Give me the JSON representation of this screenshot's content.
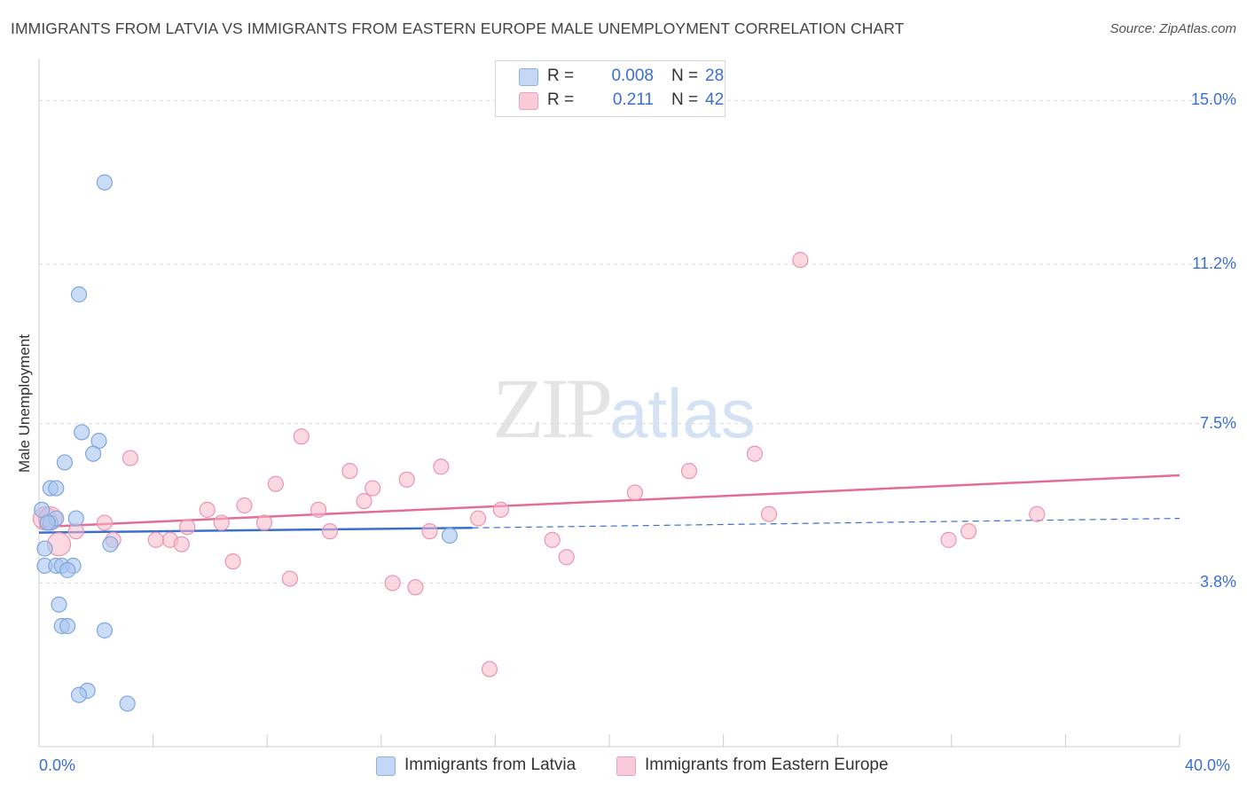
{
  "header": {
    "title": "IMMIGRANTS FROM LATVIA VS IMMIGRANTS FROM EASTERN EUROPE MALE UNEMPLOYMENT CORRELATION CHART",
    "source": "Source: ZipAtlas.com"
  },
  "watermark": {
    "zip": "ZIP",
    "atlas": "atlas"
  },
  "colors": {
    "latvia_fill": "#a9c6f0",
    "latvia_stroke": "#7fa6dd",
    "latvia_line": "#3a6fd0",
    "eastern_fill": "#f7b8cb",
    "eastern_stroke": "#e996b0",
    "eastern_line": "#e46d98",
    "grid": "#d9d9d9",
    "tick_label": "#3b6fd4"
  },
  "legend": {
    "rows": [
      {
        "r_label": "R =",
        "r_value": "0.008",
        "n_label": "N =",
        "n_value": "28"
      },
      {
        "r_label": "R =",
        "r_value": "0.211",
        "n_label": "N =",
        "n_value": "42"
      }
    ]
  },
  "bottom_legend": [
    {
      "label": "Immigrants from Latvia"
    },
    {
      "label": "Immigrants from Eastern Europe"
    }
  ],
  "chart_data": {
    "type": "scatter",
    "title": "IMMIGRANTS FROM LATVIA VS IMMIGRANTS FROM EASTERN EUROPE MALE UNEMPLOYMENT CORRELATION CHART",
    "xlabel": "",
    "ylabel": "Male Unemployment",
    "xlim": [
      0,
      40
    ],
    "ylim": [
      0,
      16.1
    ],
    "x_tick_labels": [
      "0.0%",
      "40.0%"
    ],
    "y_ticks": [
      3.8,
      7.5,
      11.2,
      15.0
    ],
    "y_tick_labels": [
      "3.8%",
      "7.5%",
      "11.2%",
      "15.0%"
    ],
    "grid": true,
    "legend_position": "top-center",
    "series": [
      {
        "name": "Immigrants from Latvia",
        "r": 0.008,
        "n": 28,
        "trend": {
          "x": [
            0,
            15.2
          ],
          "y": [
            4.97,
            5.08
          ],
          "dashed_extension": {
            "x": [
              15.2,
              40
            ],
            "y": [
              5.08,
              5.3
            ]
          }
        },
        "points": [
          {
            "x": 2.3,
            "y": 13.1
          },
          {
            "x": 1.4,
            "y": 10.5
          },
          {
            "x": 1.5,
            "y": 7.3
          },
          {
            "x": 2.1,
            "y": 7.1
          },
          {
            "x": 1.9,
            "y": 6.8
          },
          {
            "x": 0.9,
            "y": 6.6
          },
          {
            "x": 0.4,
            "y": 6.0
          },
          {
            "x": 0.6,
            "y": 6.0
          },
          {
            "x": 0.1,
            "y": 5.5
          },
          {
            "x": 0.4,
            "y": 5.2
          },
          {
            "x": 0.6,
            "y": 5.3
          },
          {
            "x": 1.3,
            "y": 5.3
          },
          {
            "x": 0.2,
            "y": 4.6
          },
          {
            "x": 2.5,
            "y": 4.7
          },
          {
            "x": 0.2,
            "y": 4.2
          },
          {
            "x": 0.6,
            "y": 4.2
          },
          {
            "x": 0.8,
            "y": 4.2
          },
          {
            "x": 1.2,
            "y": 4.2
          },
          {
            "x": 1.0,
            "y": 4.1
          },
          {
            "x": 0.7,
            "y": 3.3
          },
          {
            "x": 0.8,
            "y": 2.8
          },
          {
            "x": 1.0,
            "y": 2.8
          },
          {
            "x": 2.3,
            "y": 2.7
          },
          {
            "x": 1.7,
            "y": 1.3
          },
          {
            "x": 1.4,
            "y": 1.2
          },
          {
            "x": 3.1,
            "y": 1.0
          },
          {
            "x": 14.4,
            "y": 4.9
          },
          {
            "x": 0.3,
            "y": 5.2
          }
        ]
      },
      {
        "name": "Immigrants from Eastern Europe",
        "r": 0.211,
        "n": 42,
        "trend": {
          "x": [
            0,
            40
          ],
          "y": [
            5.1,
            6.3
          ]
        },
        "points": [
          {
            "x": 26.7,
            "y": 11.3
          },
          {
            "x": 9.2,
            "y": 7.2
          },
          {
            "x": 3.2,
            "y": 6.7
          },
          {
            "x": 25.1,
            "y": 6.8
          },
          {
            "x": 14.1,
            "y": 6.5
          },
          {
            "x": 10.9,
            "y": 6.4
          },
          {
            "x": 22.8,
            "y": 6.4
          },
          {
            "x": 12.9,
            "y": 6.2
          },
          {
            "x": 8.3,
            "y": 6.1
          },
          {
            "x": 11.7,
            "y": 6.0
          },
          {
            "x": 20.9,
            "y": 5.9
          },
          {
            "x": 11.4,
            "y": 5.7
          },
          {
            "x": 7.2,
            "y": 5.6
          },
          {
            "x": 16.2,
            "y": 5.5
          },
          {
            "x": 5.9,
            "y": 5.5
          },
          {
            "x": 9.8,
            "y": 5.5
          },
          {
            "x": 25.6,
            "y": 5.4
          },
          {
            "x": 35.0,
            "y": 5.4
          },
          {
            "x": 15.4,
            "y": 5.3
          },
          {
            "x": 2.3,
            "y": 5.2
          },
          {
            "x": 6.4,
            "y": 5.2
          },
          {
            "x": 7.9,
            "y": 5.2
          },
          {
            "x": 5.2,
            "y": 5.1
          },
          {
            "x": 10.2,
            "y": 5.0
          },
          {
            "x": 13.7,
            "y": 5.0
          },
          {
            "x": 1.3,
            "y": 5.0
          },
          {
            "x": 32.6,
            "y": 5.0
          },
          {
            "x": 18.0,
            "y": 4.8
          },
          {
            "x": 2.6,
            "y": 4.8
          },
          {
            "x": 4.6,
            "y": 4.8
          },
          {
            "x": 5.0,
            "y": 4.7
          },
          {
            "x": 4.1,
            "y": 4.8
          },
          {
            "x": 31.9,
            "y": 4.8
          },
          {
            "x": 0.7,
            "y": 4.7
          },
          {
            "x": 18.5,
            "y": 4.4
          },
          {
            "x": 6.8,
            "y": 4.3
          },
          {
            "x": 8.8,
            "y": 3.9
          },
          {
            "x": 12.4,
            "y": 3.8
          },
          {
            "x": 13.2,
            "y": 3.7
          },
          {
            "x": 15.8,
            "y": 1.8
          },
          {
            "x": 0.2,
            "y": 5.3
          },
          {
            "x": 0.4,
            "y": 5.3
          }
        ]
      }
    ]
  }
}
